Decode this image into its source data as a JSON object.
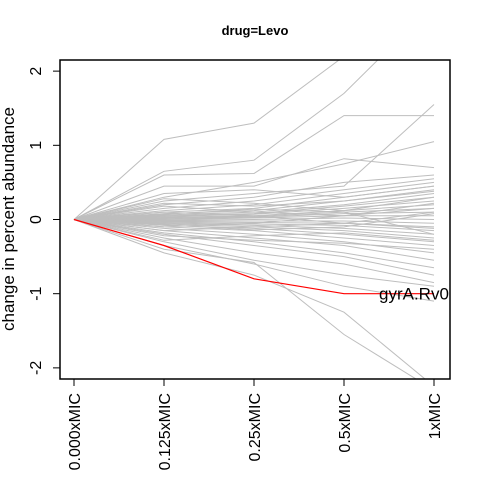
{
  "chart_data": {
    "type": "line",
    "title": "drug=Levo",
    "xlabel": "",
    "ylabel": "change in percent abundance",
    "categories": [
      "0.000xMIC",
      "0.125xMIC",
      "0.25xMIC",
      "0.5xMIC",
      "1xMIC"
    ],
    "yticks": [
      -2,
      -1,
      0,
      1,
      2
    ],
    "ylim": [
      -2.15,
      2.15
    ],
    "grid": false,
    "background_color": "#bebebe",
    "highlight_color": "#ff0000",
    "background_series": [
      [
        0,
        1.08,
        1.3,
        2.2,
        3.0
      ],
      [
        0,
        0.65,
        0.8,
        1.7,
        2.9
      ],
      [
        0,
        0.6,
        0.62,
        1.4,
        1.4
      ],
      [
        0,
        0.45,
        0.45,
        0.82,
        0.7
      ],
      [
        0,
        0.3,
        0.5,
        0.75,
        1.05
      ],
      [
        0,
        0.25,
        0.35,
        0.45,
        1.55
      ],
      [
        0,
        0.2,
        0.3,
        0.5,
        0.6
      ],
      [
        0,
        0.15,
        0.25,
        0.4,
        0.55
      ],
      [
        0,
        0.12,
        0.2,
        0.35,
        0.5
      ],
      [
        0,
        0.1,
        0.15,
        0.3,
        0.45
      ],
      [
        0,
        0.08,
        0.12,
        0.25,
        0.4
      ],
      [
        0,
        0.06,
        0.1,
        0.2,
        0.35
      ],
      [
        0,
        0.05,
        0.08,
        0.18,
        0.3
      ],
      [
        0,
        0.04,
        0.07,
        0.15,
        0.25
      ],
      [
        0,
        0.03,
        0.05,
        0.12,
        0.2
      ],
      [
        0,
        0.02,
        0.04,
        0.1,
        0.15
      ],
      [
        0,
        0.01,
        0.03,
        0.08,
        0.1
      ],
      [
        0,
        0.0,
        0.02,
        0.05,
        0.05
      ],
      [
        0,
        -0.01,
        0.0,
        0.02,
        0.0
      ],
      [
        0,
        -0.02,
        -0.02,
        -0.02,
        -0.05
      ],
      [
        0,
        -0.03,
        -0.04,
        -0.05,
        -0.1
      ],
      [
        0,
        -0.04,
        -0.06,
        -0.08,
        -0.15
      ],
      [
        0,
        -0.05,
        -0.08,
        -0.12,
        -0.2
      ],
      [
        0,
        -0.06,
        -0.1,
        -0.15,
        -0.25
      ],
      [
        0,
        -0.08,
        -0.12,
        -0.2,
        -0.3
      ],
      [
        0,
        -0.1,
        -0.15,
        -0.25,
        -0.35
      ],
      [
        0,
        -0.12,
        -0.2,
        -0.3,
        -0.45
      ],
      [
        0,
        -0.15,
        -0.25,
        -0.35,
        -0.55
      ],
      [
        0,
        -0.18,
        -0.3,
        -0.45,
        -0.65
      ],
      [
        0,
        -0.2,
        -0.35,
        -0.5,
        -0.75
      ],
      [
        0,
        -0.25,
        -0.45,
        -0.6,
        -0.85
      ],
      [
        0,
        -0.3,
        -0.55,
        -0.75,
        -0.9
      ],
      [
        0,
        -0.35,
        -0.6,
        -0.9,
        -1.1
      ],
      [
        0,
        -0.4,
        -0.58,
        -1.55,
        -2.3
      ],
      [
        0,
        -0.45,
        -0.75,
        -1.25,
        -2.25
      ],
      [
        0,
        0.35,
        0.4,
        0.3,
        0.45
      ],
      [
        0,
        0.22,
        0.18,
        0.25,
        0.38
      ],
      [
        0,
        -0.22,
        -0.28,
        -0.32,
        -0.4
      ],
      [
        0,
        0.18,
        0.1,
        0.05,
        0.22
      ],
      [
        0,
        -0.15,
        -0.1,
        -0.05,
        -0.12
      ],
      [
        0,
        0.1,
        0.05,
        -0.05,
        0.1
      ],
      [
        0,
        -0.1,
        -0.05,
        0.05,
        0.15
      ],
      [
        0,
        0.28,
        0.22,
        0.12,
        0.3
      ],
      [
        0,
        -0.28,
        -0.22,
        -0.18,
        -0.28
      ],
      [
        0,
        0.07,
        0.14,
        0.1,
        -0.2
      ],
      [
        0,
        -0.07,
        -0.14,
        -0.1,
        0.08
      ]
    ],
    "highlight_series": {
      "name": "gyrA.Rv0",
      "values": [
        0,
        -0.35,
        -0.8,
        -1.0,
        -1.0
      ]
    },
    "annotation": {
      "text": "gyrA.Rv0",
      "x_category": "0.5xMIC",
      "y": -1.0
    }
  }
}
